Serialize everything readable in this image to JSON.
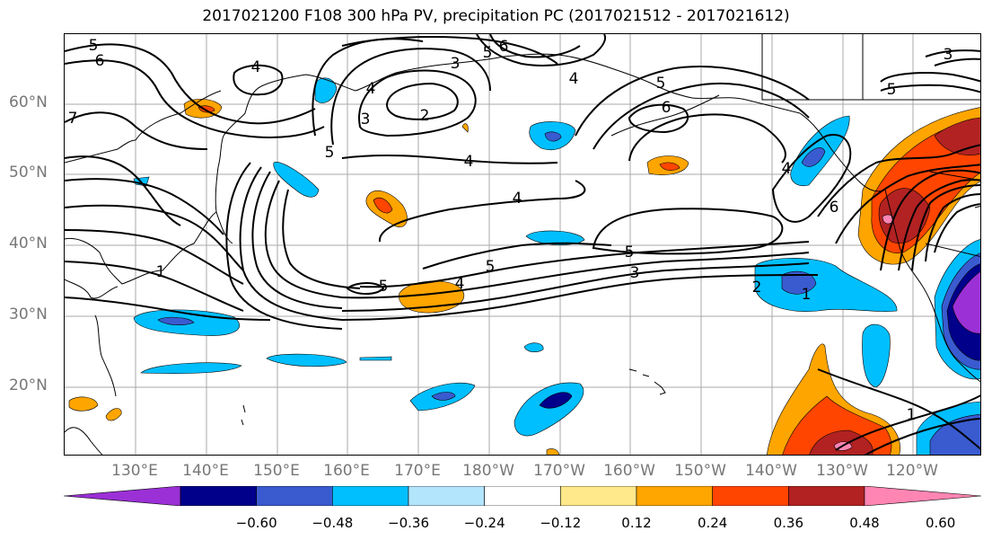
{
  "title": "2017021200 F108 300 hPa PV, precipitation PC (2017021512 - 2017021612)",
  "lat_labels": [
    "60°N",
    "50°N",
    "40°N",
    "30°N",
    "20°N"
  ],
  "lon_labels": [
    "130°E",
    "140°E",
    "150°E",
    "160°E",
    "170°E",
    "180°W",
    "170°W",
    "160°W",
    "150°W",
    "140°W",
    "130°W",
    "120°W"
  ],
  "colorbar": {
    "ticks": [
      "−0.60",
      "−0.48",
      "−0.36",
      "−0.24",
      "−0.12",
      "0.12",
      "0.24",
      "0.36",
      "0.48",
      "0.60"
    ],
    "colors": [
      "#9b30d6",
      "#00008b",
      "#3a5bd0",
      "#00bfff",
      "#b3e5fc",
      "#ffffff",
      "#ffe98a",
      "#ffa500",
      "#ff4500",
      "#b22222",
      "#ff85b3"
    ]
  },
  "contour_labels": [
    {
      "text": "5"
    },
    {
      "text": "6"
    },
    {
      "text": "4"
    },
    {
      "text": "7"
    },
    {
      "text": "2"
    },
    {
      "text": "3"
    },
    {
      "text": "5"
    },
    {
      "text": "6"
    },
    {
      "text": "4"
    },
    {
      "text": "4"
    },
    {
      "text": "5"
    },
    {
      "text": "5"
    },
    {
      "text": "3"
    },
    {
      "text": "6"
    },
    {
      "text": "5"
    },
    {
      "text": "4"
    },
    {
      "text": "4"
    },
    {
      "text": "5"
    },
    {
      "text": "4"
    },
    {
      "text": "6"
    },
    {
      "text": "5"
    },
    {
      "text": "5"
    },
    {
      "text": "3"
    },
    {
      "text": "2"
    },
    {
      "text": "1"
    },
    {
      "text": "1"
    },
    {
      "text": "1"
    },
    {
      "text": "3"
    },
    {
      "text": "4"
    }
  ]
}
